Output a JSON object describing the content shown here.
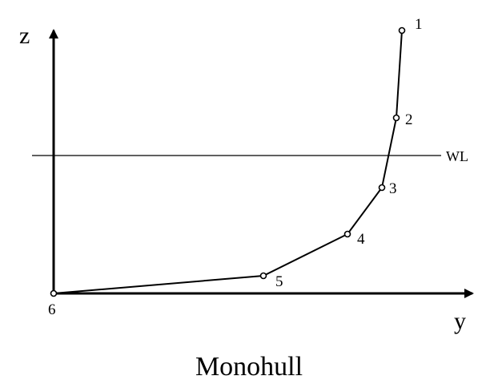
{
  "axes": {
    "vertical_label": "z",
    "horizontal_label": "y"
  },
  "waterline": {
    "label": "WL"
  },
  "points": [
    {
      "label": "1"
    },
    {
      "label": "2"
    },
    {
      "label": "3"
    },
    {
      "label": "4"
    },
    {
      "label": "5"
    },
    {
      "label": "6"
    }
  ],
  "caption": "Monohull"
}
